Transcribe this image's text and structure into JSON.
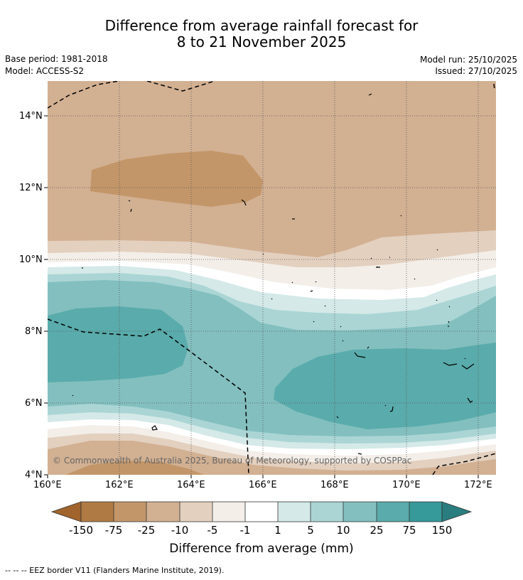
{
  "header": {
    "title_line1": "Difference from average rainfall forecast for",
    "title_line2": "8 to 21 November 2025",
    "base_period": "Base period: 1981-2018",
    "model": "Model: ACCESS-S2",
    "model_run": "Model run: 25/10/2025",
    "issued": "Issued: 27/10/2025"
  },
  "map": {
    "lat_labels": [
      "14°N",
      "12°N",
      "10°N",
      "8°N",
      "6°N",
      "4°N"
    ],
    "lon_labels": [
      "160°E",
      "162°E",
      "164°E",
      "166°E",
      "168°E",
      "170°E",
      "172°E"
    ],
    "copyright": "© Commonwealth of Australia 2025, Bureau of Meteorology, supported by COSPPac",
    "region_bounds": {
      "lon": [
        160,
        172.5
      ],
      "lat": [
        4,
        15
      ]
    },
    "fill_background": "#d2b092"
  },
  "colorbar": {
    "title": "Difference from average (mm)",
    "tick_labels": [
      "-150",
      "-75",
      "-25",
      "-10",
      "-5",
      "-1",
      "1",
      "5",
      "10",
      "25",
      "75",
      "150"
    ],
    "colors": [
      "#a0642c",
      "#b07a44",
      "#c39669",
      "#d2b092",
      "#e3d0bf",
      "#f3eee8",
      "#ffffff",
      "#d4e9e8",
      "#abd5d5",
      "#83bfbf",
      "#5aabab",
      "#36999a",
      "#2a7d7e"
    ]
  },
  "footnote": "--  --  -- EEZ border V11 (Flanders Marine Institute, 2019)."
}
